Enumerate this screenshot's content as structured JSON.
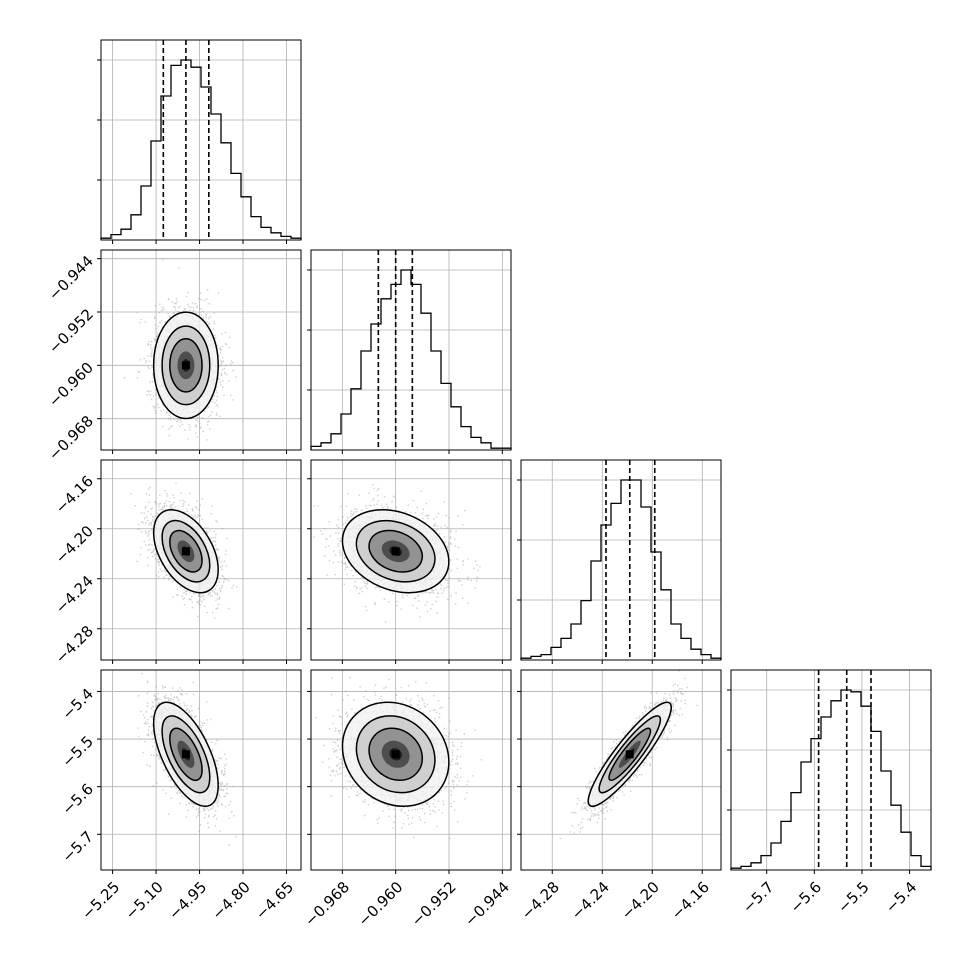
{
  "chart_data": {
    "type": "corner",
    "colors": {
      "line": "#000000",
      "grid": "#b0b0b0",
      "scatter": "#9e9e9e",
      "background": "#ffffff"
    },
    "grid": true,
    "quantile_style": "dashed",
    "params": [
      {
        "range": [
          -5.29,
          -4.6
        ],
        "ticks": [
          -5.25,
          -5.1,
          -4.95,
          -4.8,
          -4.65
        ],
        "tick_labels": [
          "−5.25",
          "−5.10",
          "−4.95",
          "−4.80",
          "−4.65"
        ],
        "quantiles": [
          -5.075,
          -4.997,
          -4.918
        ],
        "hist_start": -5.29,
        "hist_step": 0.0345,
        "hist": [
          1,
          3,
          6,
          14,
          30,
          55,
          80,
          97,
          100,
          96,
          85,
          70,
          54,
          37,
          24,
          13,
          7,
          4,
          2,
          1
        ]
      },
      {
        "range": [
          -0.9727,
          -0.9427
        ],
        "ticks": [
          -0.968,
          -0.96,
          -0.952,
          -0.944
        ],
        "tick_labels": [
          "−0.968",
          "−0.960",
          "−0.952",
          "−0.944"
        ],
        "quantiles": [
          -0.9626,
          -0.96,
          -0.9575
        ],
        "hist_start": -0.9727,
        "hist_step": 0.0015,
        "hist": [
          2,
          4,
          9,
          20,
          34,
          55,
          70,
          84,
          92,
          100,
          92,
          76,
          55,
          37,
          24,
          13,
          7,
          4,
          1,
          1
        ]
      },
      {
        "range": [
          -4.305,
          -4.145
        ],
        "ticks": [
          -4.28,
          -4.24,
          -4.2,
          -4.16
        ],
        "tick_labels": [
          "−4.28",
          "−4.24",
          "−4.20",
          "−4.16"
        ],
        "quantiles": [
          -4.237,
          -4.218,
          -4.198
        ],
        "hist_start": -4.305,
        "hist_step": 0.008,
        "hist": [
          1,
          2,
          3,
          7,
          12,
          20,
          33,
          55,
          75,
          87,
          100,
          100,
          85,
          60,
          39,
          20,
          12,
          6,
          3,
          1
        ]
      },
      {
        "range": [
          -5.775,
          -5.355
        ],
        "ticks": [
          -5.7,
          -5.6,
          -5.5,
          -5.4
        ],
        "tick_labels": [
          "−5.7",
          "−5.6",
          "−5.5",
          "−5.4"
        ],
        "quantiles": [
          -5.591,
          -5.532,
          -5.481
        ],
        "hist_start": -5.775,
        "hist_step": 0.021,
        "hist": [
          1,
          2,
          4,
          8,
          15,
          27,
          43,
          60,
          73,
          85,
          94,
          100,
          99,
          91,
          77,
          55,
          36,
          21,
          8,
          2
        ]
      }
    ],
    "pairs": [
      {
        "row": 1,
        "col": 0,
        "mean": [
          -4.997,
          -0.96
        ],
        "sd": [
          0.053,
          0.0038
        ],
        "rho": 0.0
      },
      {
        "row": 2,
        "col": 0,
        "mean": [
          -4.997,
          -4.218
        ],
        "sd": [
          0.053,
          0.0158
        ],
        "rho": -0.45
      },
      {
        "row": 2,
        "col": 1,
        "mean": [
          -0.96,
          -4.218
        ],
        "sd": [
          0.0038,
          0.0158
        ],
        "rho": -0.25
      },
      {
        "row": 3,
        "col": 0,
        "mean": [
          -4.997,
          -5.532
        ],
        "sd": [
          0.053,
          0.052
        ],
        "rho": -0.6
      },
      {
        "row": 3,
        "col": 1,
        "mean": [
          -0.96,
          -5.532
        ],
        "sd": [
          0.0038,
          0.052
        ],
        "rho": -0.15
      },
      {
        "row": 3,
        "col": 2,
        "mean": [
          -4.218,
          -5.532
        ],
        "sd": [
          0.0158,
          0.052
        ],
        "rho": 0.9
      }
    ]
  }
}
